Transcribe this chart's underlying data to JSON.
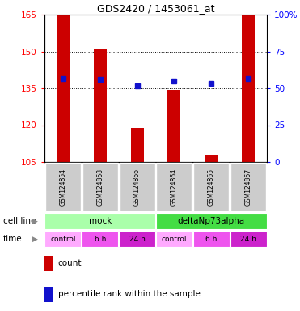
{
  "title": "GDS2420 / 1453061_at",
  "samples": [
    "GSM124854",
    "GSM124868",
    "GSM124866",
    "GSM124864",
    "GSM124865",
    "GSM124867"
  ],
  "bar_heights": [
    165.0,
    151.0,
    119.0,
    134.5,
    108.0,
    165.0
  ],
  "bar_base": 105,
  "blue_y": [
    139.0,
    138.5,
    136.0,
    138.0,
    137.0,
    139.0
  ],
  "left_ylim": [
    105,
    165
  ],
  "right_ylim": [
    0,
    100
  ],
  "left_yticks": [
    105,
    120,
    135,
    150,
    165
  ],
  "right_yticks": [
    0,
    25,
    50,
    75,
    100
  ],
  "right_yticklabels": [
    "0",
    "25",
    "50",
    "75",
    "100%"
  ],
  "cell_line_labels": [
    "mock",
    "deltaNp73alpha"
  ],
  "cell_line_colors": [
    "#aaffaa",
    "#44dd44"
  ],
  "time_labels": [
    "control",
    "6 h",
    "24 h",
    "control",
    "6 h",
    "24 h"
  ],
  "time_colors_light": "#ffaaff",
  "time_colors_mid": "#ee55ee",
  "time_colors_dark": "#cc22cc",
  "bar_color": "#cc0000",
  "blue_color": "#1111cc",
  "bg_color": "#ffffff",
  "sample_bg": "#cccccc",
  "legend_count_color": "#cc0000",
  "legend_pct_color": "#1111cc",
  "bar_width": 0.35
}
